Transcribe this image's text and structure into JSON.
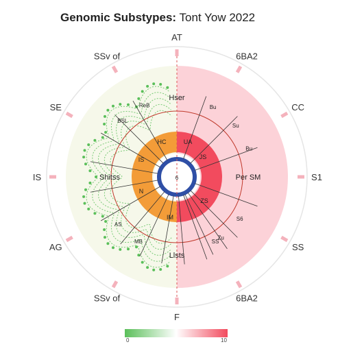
{
  "title": {
    "bold": "Genomic Substypes:",
    "rest": "Tont Yow 2022"
  },
  "chart_data": {
    "type": "radial",
    "colors": {
      "left_fill": "#f6f8ea",
      "right_fill": "#fcd2d8",
      "orange": "#f39c38",
      "red": "#f24b5e",
      "blue": "#2f4fa6",
      "green": "#5bbf5a",
      "tick_pink": "#f4b2bc",
      "ring": "#e5e5e5"
    },
    "outer_labels": [
      {
        "text": "AT",
        "angle": 0
      },
      {
        "text": "6BA2",
        "angle": 30
      },
      {
        "text": "CC",
        "angle": 60
      },
      {
        "text": "S1",
        "angle": 90
      },
      {
        "text": "SS",
        "angle": 120
      },
      {
        "text": "6BA2",
        "angle": 150
      },
      {
        "text": "F",
        "angle": 180
      },
      {
        "text": "SSv of",
        "angle": 210
      },
      {
        "text": "AG",
        "angle": 240
      },
      {
        "text": "IS",
        "angle": 270
      },
      {
        "text": "SE",
        "angle": 300
      },
      {
        "text": "SSv of",
        "angle": 330
      }
    ],
    "inner_labels": {
      "top": "Hser",
      "bottom": "Llsts",
      "left": "Shitss",
      "right": "Per SM",
      "center": "6"
    },
    "spoke_labels": [
      {
        "text": "Bu",
        "angle": 28
      },
      {
        "text": "Su",
        "angle": 50
      },
      {
        "text": "Bu",
        "angle": 70
      },
      {
        "text": "Zu",
        "angle": 145
      },
      {
        "text": "S6",
        "angle": 125
      },
      {
        "text": "SS",
        "angle": 150
      },
      {
        "text": "ReB",
        "angle": 335
      },
      {
        "text": "BSL",
        "angle": 315
      },
      {
        "text": "MB",
        "angle": 210
      },
      {
        "text": "AS",
        "angle": 230
      }
    ],
    "ring_labels": {
      "orange_top": "HC",
      "orange_left": "IS",
      "orange_bottom": "IM",
      "orange_center_left": "N",
      "red_top": "UA",
      "red_right": "JS",
      "red_bottom": "ZS"
    },
    "colorbar": {
      "min": "0",
      "max": "10",
      "colors": [
        "#5bbf5a",
        "#ffffff",
        "#f24b5e"
      ]
    }
  }
}
